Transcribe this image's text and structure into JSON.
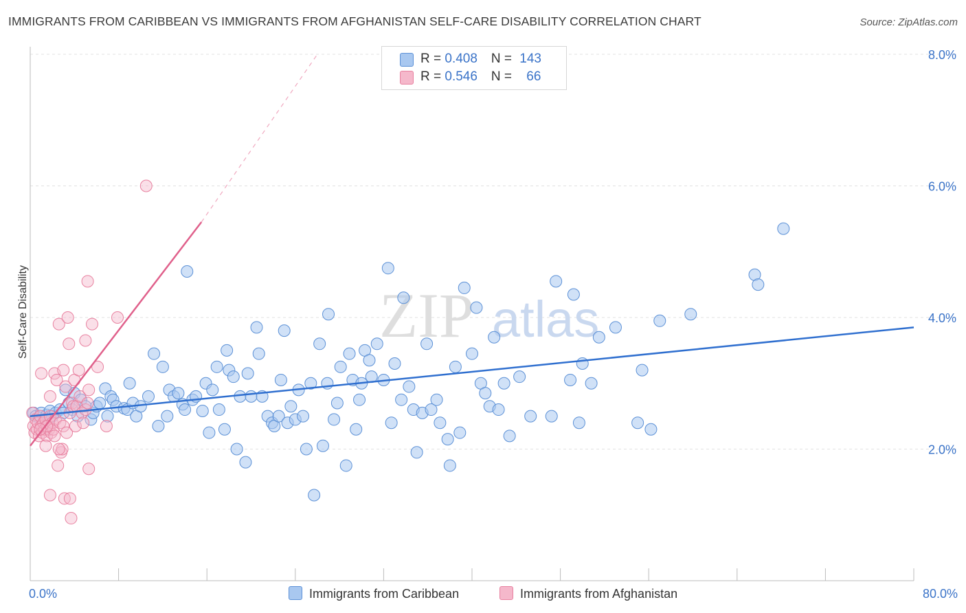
{
  "header": {
    "title": "IMMIGRANTS FROM CARIBBEAN VS IMMIGRANTS FROM AFGHANISTAN SELF-CARE DISABILITY CORRELATION CHART",
    "source": "Source: ZipAtlas.com"
  },
  "legend": {
    "row1": {
      "r_label": "R = ",
      "r_value": "0.408",
      "n_label": "N = ",
      "n_value": "143"
    },
    "row2": {
      "r_label": "R = ",
      "r_value": "0.546",
      "n_label": "N = ",
      "n_value": "66"
    }
  },
  "bottom_legend": {
    "series1": "Immigrants from Caribbean",
    "series2": "Immigrants from Afghanistan"
  },
  "watermark": {
    "zip": "ZIP",
    "atlas": "atlas"
  },
  "colors": {
    "blue_fill": "#a9c8f0",
    "blue_stroke": "#5b90d6",
    "blue_line": "#2f6fcf",
    "pink_fill": "#f5b8cb",
    "pink_stroke": "#e8809f",
    "pink_line": "#e0608b",
    "tick_label": "#3a73c8",
    "grid": "#e1e1e1"
  },
  "chart_data": {
    "type": "scatter",
    "title": "IMMIGRANTS FROM CARIBBEAN VS IMMIGRANTS FROM AFGHANISTAN SELF-CARE DISABILITY CORRELATION CHART",
    "xlabel": "",
    "ylabel": "Self-Care Disability",
    "xlim": [
      0,
      80
    ],
    "ylim": [
      0,
      8
    ],
    "x_tick_labels": [
      "0.0%",
      "80.0%"
    ],
    "y_ticks": [
      2,
      4,
      6,
      8
    ],
    "y_tick_labels": [
      "2.0%",
      "4.0%",
      "6.0%",
      "8.0%"
    ],
    "series": [
      {
        "name": "Immigrants from Caribbean",
        "color": "#5b90d6",
        "R": 0.408,
        "N": 143,
        "trend": {
          "x": [
            0,
            80
          ],
          "y": [
            2.5,
            3.85
          ]
        },
        "points": [
          [
            0.3,
            2.55
          ],
          [
            0.5,
            2.5
          ],
          [
            0.8,
            2.48
          ],
          [
            1.0,
            2.55
          ],
          [
            1.3,
            2.45
          ],
          [
            1.5,
            2.52
          ],
          [
            1.8,
            2.58
          ],
          [
            2.0,
            2.5
          ],
          [
            2.3,
            2.55
          ],
          [
            2.7,
            2.6
          ],
          [
            3.0,
            2.55
          ],
          [
            3.2,
            2.9
          ],
          [
            3.5,
            2.7
          ],
          [
            3.8,
            2.6
          ],
          [
            4.0,
            2.85
          ],
          [
            4.3,
            2.5
          ],
          [
            4.6,
            2.75
          ],
          [
            5.0,
            2.65
          ],
          [
            5.5,
            2.45
          ],
          [
            5.7,
            2.55
          ],
          [
            6.0,
            2.65
          ],
          [
            6.3,
            2.7
          ],
          [
            6.8,
            2.92
          ],
          [
            7.0,
            2.5
          ],
          [
            7.3,
            2.8
          ],
          [
            7.5,
            2.75
          ],
          [
            7.8,
            2.65
          ],
          [
            8.5,
            2.62
          ],
          [
            8.8,
            2.6
          ],
          [
            9.0,
            3.0
          ],
          [
            9.3,
            2.7
          ],
          [
            9.6,
            2.5
          ],
          [
            10.0,
            2.65
          ],
          [
            10.7,
            2.8
          ],
          [
            11.2,
            3.45
          ],
          [
            11.6,
            2.35
          ],
          [
            12.0,
            3.25
          ],
          [
            12.4,
            2.5
          ],
          [
            12.6,
            2.9
          ],
          [
            13.0,
            2.8
          ],
          [
            13.4,
            2.85
          ],
          [
            13.8,
            2.68
          ],
          [
            14.0,
            2.6
          ],
          [
            14.2,
            4.7
          ],
          [
            14.7,
            2.75
          ],
          [
            15.0,
            2.8
          ],
          [
            15.6,
            2.58
          ],
          [
            15.9,
            3.0
          ],
          [
            16.2,
            2.25
          ],
          [
            16.5,
            2.9
          ],
          [
            16.9,
            3.25
          ],
          [
            17.1,
            2.6
          ],
          [
            17.6,
            2.3
          ],
          [
            17.8,
            3.5
          ],
          [
            18.0,
            3.2
          ],
          [
            18.4,
            3.1
          ],
          [
            18.7,
            2.0
          ],
          [
            19.0,
            2.8
          ],
          [
            19.5,
            1.8
          ],
          [
            19.7,
            3.15
          ],
          [
            20.0,
            2.8
          ],
          [
            20.5,
            3.85
          ],
          [
            20.7,
            3.45
          ],
          [
            21.0,
            2.8
          ],
          [
            21.5,
            2.5
          ],
          [
            21.9,
            2.4
          ],
          [
            22.1,
            2.35
          ],
          [
            22.5,
            2.5
          ],
          [
            22.7,
            3.05
          ],
          [
            23.0,
            3.8
          ],
          [
            23.3,
            2.4
          ],
          [
            23.6,
            2.65
          ],
          [
            24.0,
            2.45
          ],
          [
            24.3,
            2.9
          ],
          [
            24.7,
            2.5
          ],
          [
            25.0,
            2.0
          ],
          [
            25.4,
            3.0
          ],
          [
            25.7,
            1.3
          ],
          [
            26.2,
            3.6
          ],
          [
            26.5,
            2.05
          ],
          [
            26.9,
            3.0
          ],
          [
            27.0,
            4.05
          ],
          [
            27.5,
            2.45
          ],
          [
            27.8,
            2.7
          ],
          [
            28.1,
            3.25
          ],
          [
            28.6,
            1.75
          ],
          [
            28.9,
            3.45
          ],
          [
            29.2,
            3.05
          ],
          [
            29.5,
            2.3
          ],
          [
            29.8,
            2.75
          ],
          [
            30.0,
            3.0
          ],
          [
            30.3,
            3.5
          ],
          [
            30.7,
            3.35
          ],
          [
            30.9,
            3.1
          ],
          [
            31.4,
            3.6
          ],
          [
            32.0,
            3.05
          ],
          [
            32.4,
            4.75
          ],
          [
            32.7,
            2.4
          ],
          [
            33.0,
            3.3
          ],
          [
            33.6,
            2.75
          ],
          [
            33.8,
            4.3
          ],
          [
            34.3,
            2.95
          ],
          [
            34.7,
            2.6
          ],
          [
            35.0,
            1.95
          ],
          [
            35.5,
            2.55
          ],
          [
            35.9,
            3.6
          ],
          [
            36.3,
            2.6
          ],
          [
            36.8,
            2.75
          ],
          [
            37.1,
            2.4
          ],
          [
            37.8,
            2.15
          ],
          [
            38.0,
            1.75
          ],
          [
            38.5,
            3.25
          ],
          [
            38.9,
            2.25
          ],
          [
            39.3,
            4.45
          ],
          [
            40.0,
            3.45
          ],
          [
            40.4,
            4.15
          ],
          [
            40.8,
            3.0
          ],
          [
            41.2,
            2.85
          ],
          [
            41.6,
            2.65
          ],
          [
            42.0,
            3.7
          ],
          [
            42.4,
            2.6
          ],
          [
            42.9,
            3.0
          ],
          [
            43.4,
            2.2
          ],
          [
            44.3,
            3.1
          ],
          [
            45.3,
            2.5
          ],
          [
            47.2,
            2.5
          ],
          [
            47.6,
            4.55
          ],
          [
            48.9,
            3.05
          ],
          [
            49.2,
            4.35
          ],
          [
            49.7,
            2.4
          ],
          [
            50.0,
            3.3
          ],
          [
            50.8,
            3.0
          ],
          [
            51.5,
            3.7
          ],
          [
            53.0,
            3.85
          ],
          [
            55.0,
            2.4
          ],
          [
            55.4,
            3.2
          ],
          [
            56.2,
            2.3
          ],
          [
            57.0,
            3.95
          ],
          [
            59.8,
            4.05
          ],
          [
            65.6,
            4.65
          ],
          [
            65.9,
            4.5
          ],
          [
            68.2,
            5.35
          ]
        ]
      },
      {
        "name": "Immigrants from Afghanistan",
        "color": "#e8809f",
        "R": 0.546,
        "N": 66,
        "trend": {
          "x": [
            0,
            15.5
          ],
          "y": [
            2.05,
            5.45
          ]
        },
        "trend_dashed": {
          "x": [
            15.5,
            26
          ],
          "y": [
            5.45,
            8.0
          ]
        },
        "points": [
          [
            0.2,
            2.55
          ],
          [
            0.3,
            2.35
          ],
          [
            0.4,
            2.25
          ],
          [
            0.5,
            2.45
          ],
          [
            0.6,
            2.3
          ],
          [
            0.7,
            2.4
          ],
          [
            0.8,
            2.2
          ],
          [
            0.9,
            2.5
          ],
          [
            1.0,
            2.35
          ],
          [
            1.1,
            2.25
          ],
          [
            1.2,
            2.4
          ],
          [
            1.3,
            2.3
          ],
          [
            1.4,
            2.45
          ],
          [
            1.5,
            2.2
          ],
          [
            1.6,
            2.35
          ],
          [
            1.7,
            2.3
          ],
          [
            1.8,
            2.5
          ],
          [
            1.9,
            2.25
          ],
          [
            2.0,
            2.4
          ],
          [
            2.1,
            2.3
          ],
          [
            2.2,
            2.2
          ],
          [
            2.3,
            2.45
          ],
          [
            1.0,
            3.15
          ],
          [
            1.4,
            2.05
          ],
          [
            1.8,
            2.8
          ],
          [
            1.8,
            1.3
          ],
          [
            2.2,
            3.15
          ],
          [
            2.4,
            3.05
          ],
          [
            2.5,
            1.75
          ],
          [
            2.6,
            3.9
          ],
          [
            2.7,
            2.4
          ],
          [
            2.8,
            1.95
          ],
          [
            2.9,
            2.0
          ],
          [
            3.0,
            2.35
          ],
          [
            3.0,
            3.2
          ],
          [
            3.1,
            1.25
          ],
          [
            3.2,
            2.95
          ],
          [
            3.3,
            2.25
          ],
          [
            3.4,
            4.0
          ],
          [
            3.5,
            3.6
          ],
          [
            3.6,
            2.55
          ],
          [
            3.6,
            1.25
          ],
          [
            3.7,
            0.95
          ],
          [
            3.8,
            2.7
          ],
          [
            3.9,
            2.65
          ],
          [
            4.0,
            3.05
          ],
          [
            4.1,
            2.35
          ],
          [
            4.2,
            2.65
          ],
          [
            4.4,
            3.2
          ],
          [
            4.5,
            2.8
          ],
          [
            4.7,
            2.55
          ],
          [
            4.8,
            2.4
          ],
          [
            5.0,
            2.6
          ],
          [
            5.0,
            3.65
          ],
          [
            5.2,
            2.7
          ],
          [
            5.2,
            4.55
          ],
          [
            5.3,
            2.9
          ],
          [
            5.3,
            1.7
          ],
          [
            5.6,
            3.9
          ],
          [
            6.1,
            3.25
          ],
          [
            6.9,
            2.35
          ],
          [
            7.9,
            4.0
          ],
          [
            10.5,
            6.0
          ],
          [
            2.6,
            2.0
          ],
          [
            1.5,
            2.35
          ],
          [
            0.9,
            2.3
          ]
        ]
      }
    ]
  }
}
